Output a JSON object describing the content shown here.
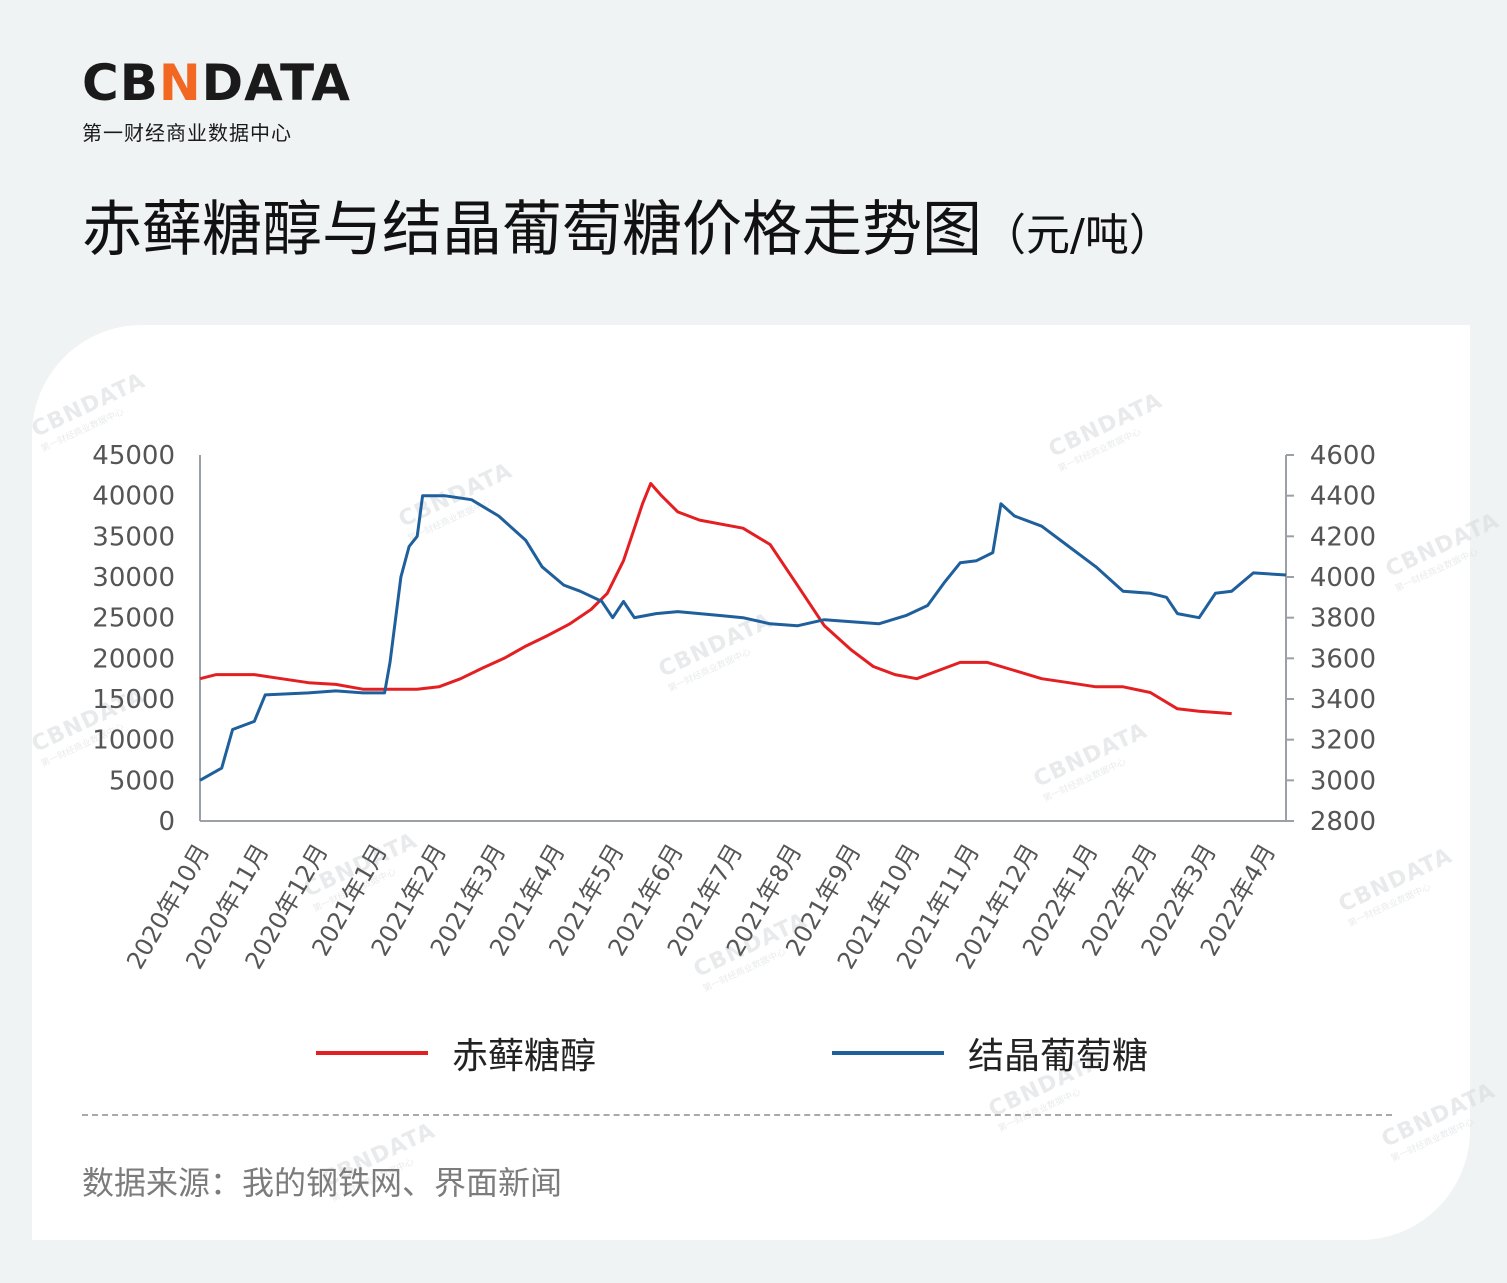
{
  "brand": {
    "logo_part1": "CB",
    "logo_accent": "N",
    "logo_part2": "DATA",
    "subtitle": "第一财经商业数据中心"
  },
  "page_title": "赤藓糖醇与结晶葡萄糖价格走势图",
  "unit_label": "（元/吨）",
  "source_text": "数据来源：我的钢铁网、界面新闻",
  "colors": {
    "erythritol": "#e41f22",
    "glucose": "#1f5f9b",
    "axis": "#9aa0a6",
    "tick_text": "#555555"
  },
  "chart_data": {
    "type": "line",
    "x_categories": [
      "2020年10月",
      "2020年11月",
      "2020年12月",
      "2021年1月",
      "2021年2月",
      "2021年3月",
      "2021年4月",
      "2021年5月",
      "2021年6月",
      "2021年7月",
      "2021年8月",
      "2021年9月",
      "2021年10月",
      "2021年11月",
      "2021年12月",
      "2022年1月",
      "2022年2月",
      "2022年3月",
      "2022年4月"
    ],
    "y_left": {
      "min": 0,
      "max": 45000,
      "ticks": [
        "45000",
        "40000",
        "35000",
        "30000",
        "25000",
        "20000",
        "15000",
        "10000",
        "5000",
        "0"
      ]
    },
    "y_right": {
      "min": 2800,
      "max": 4600,
      "ticks": [
        "4600",
        "4400",
        "4200",
        "4000",
        "3800",
        "3600",
        "3400",
        "3200",
        "3000",
        "2800"
      ]
    },
    "grid": false,
    "legend_position": "bottom",
    "series": [
      {
        "name": "赤藓糖醇",
        "axis": "left",
        "points": [
          [
            0.0,
            17500
          ],
          [
            0.3,
            18000
          ],
          [
            1.0,
            18000
          ],
          [
            1.5,
            17500
          ],
          [
            2.0,
            17000
          ],
          [
            2.5,
            16800
          ],
          [
            3.0,
            16200
          ],
          [
            3.5,
            16200
          ],
          [
            4.0,
            16200
          ],
          [
            4.4,
            16500
          ],
          [
            4.8,
            17500
          ],
          [
            5.2,
            18800
          ],
          [
            5.6,
            20000
          ],
          [
            6.0,
            21500
          ],
          [
            6.4,
            22800
          ],
          [
            6.8,
            24200
          ],
          [
            7.2,
            26000
          ],
          [
            7.5,
            28000
          ],
          [
            7.8,
            32000
          ],
          [
            8.0,
            36000
          ],
          [
            8.15,
            39000
          ],
          [
            8.3,
            41500
          ],
          [
            8.5,
            40000
          ],
          [
            8.8,
            38000
          ],
          [
            9.2,
            37000
          ],
          [
            10.0,
            36000
          ],
          [
            10.5,
            34000
          ],
          [
            11.0,
            29000
          ],
          [
            11.5,
            24000
          ],
          [
            12.0,
            21000
          ],
          [
            12.4,
            19000
          ],
          [
            12.8,
            18000
          ],
          [
            13.2,
            17500
          ],
          [
            13.6,
            18500
          ],
          [
            14.0,
            19500
          ],
          [
            14.5,
            19500
          ],
          [
            15.0,
            18500
          ],
          [
            15.5,
            17500
          ],
          [
            16.0,
            17000
          ],
          [
            16.5,
            16500
          ],
          [
            17.0,
            16500
          ],
          [
            17.5,
            15800
          ],
          [
            18.0,
            13800
          ],
          [
            18.4,
            13500
          ],
          [
            19.0,
            13200
          ]
        ]
      },
      {
        "name": "结晶葡萄糖",
        "axis": "right",
        "points": [
          [
            0.0,
            3000
          ],
          [
            0.4,
            3060
          ],
          [
            0.6,
            3250
          ],
          [
            1.0,
            3290
          ],
          [
            1.2,
            3420
          ],
          [
            2.0,
            3430
          ],
          [
            2.5,
            3440
          ],
          [
            3.0,
            3430
          ],
          [
            3.4,
            3430
          ],
          [
            3.5,
            3580
          ],
          [
            3.7,
            4000
          ],
          [
            3.85,
            4150
          ],
          [
            4.0,
            4200
          ],
          [
            4.1,
            4400
          ],
          [
            4.5,
            4400
          ],
          [
            5.0,
            4380
          ],
          [
            5.5,
            4300
          ],
          [
            6.0,
            4180
          ],
          [
            6.3,
            4050
          ],
          [
            6.7,
            3960
          ],
          [
            7.0,
            3930
          ],
          [
            7.4,
            3880
          ],
          [
            7.6,
            3800
          ],
          [
            7.8,
            3880
          ],
          [
            8.0,
            3800
          ],
          [
            8.4,
            3820
          ],
          [
            8.8,
            3830
          ],
          [
            9.2,
            3820
          ],
          [
            9.6,
            3810
          ],
          [
            10.0,
            3800
          ],
          [
            10.5,
            3770
          ],
          [
            11.0,
            3760
          ],
          [
            11.5,
            3790
          ],
          [
            12.0,
            3780
          ],
          [
            12.5,
            3770
          ],
          [
            13.0,
            3810
          ],
          [
            13.4,
            3860
          ],
          [
            13.7,
            3970
          ],
          [
            14.0,
            4070
          ],
          [
            14.3,
            4080
          ],
          [
            14.6,
            4120
          ],
          [
            14.75,
            4360
          ],
          [
            15.0,
            4300
          ],
          [
            15.5,
            4250
          ],
          [
            16.0,
            4150
          ],
          [
            16.5,
            4050
          ],
          [
            17.0,
            3930
          ],
          [
            17.5,
            3920
          ],
          [
            17.8,
            3900
          ],
          [
            18.0,
            3820
          ],
          [
            18.4,
            3800
          ],
          [
            18.7,
            3920
          ],
          [
            19.0,
            3930
          ],
          [
            19.4,
            4020
          ],
          [
            20.0,
            4010
          ]
        ]
      }
    ]
  },
  "watermark": {
    "main": "CBNDATA",
    "sub": "第一财经商业数据中心"
  }
}
